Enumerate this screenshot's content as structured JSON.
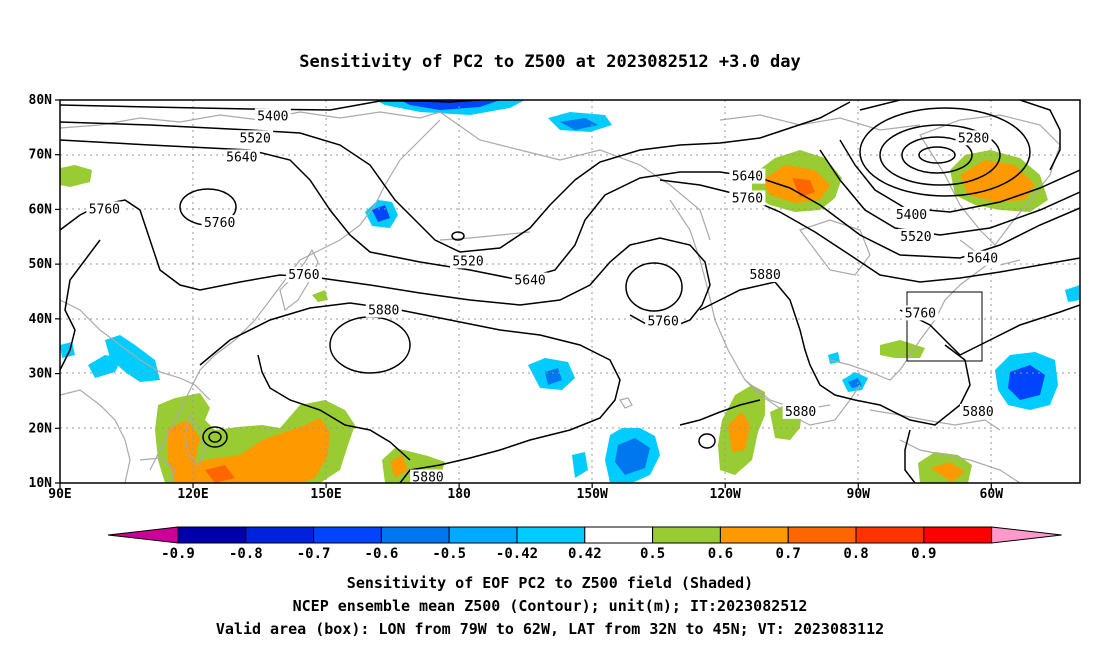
{
  "title": "Sensitivity of PC2 to Z500 at 2023082512 +3.0 day",
  "map": {
    "lon_ticks": [
      "90E",
      "120E",
      "150E",
      "180",
      "150W",
      "120W",
      "90W",
      "60W"
    ],
    "lat_ticks": [
      "80N",
      "70N",
      "60N",
      "50N",
      "40N",
      "30N",
      "20N",
      "10N"
    ],
    "lon_range": [
      90,
      320
    ],
    "lat_range": [
      10,
      80
    ],
    "grid_lines": "dotted",
    "valid_box": {
      "lon_w": -79,
      "lon_e": -62,
      "lat_s": 32,
      "lat_n": 45
    },
    "contour_labels": [
      {
        "text": "5400",
        "lon": 138,
        "lat": 77
      },
      {
        "text": "5520",
        "lon": 134,
        "lat": 73
      },
      {
        "text": "5640",
        "lon": 131,
        "lat": 69.5
      },
      {
        "text": "5760",
        "lon": 100,
        "lat": 60
      },
      {
        "text": "5760",
        "lon": 126,
        "lat": 57.5
      },
      {
        "text": "5520",
        "lon": 182,
        "lat": 50.5
      },
      {
        "text": "5640",
        "lon": 196,
        "lat": 47
      },
      {
        "text": "5760",
        "lon": 145,
        "lat": 48
      },
      {
        "text": "5880",
        "lon": 163,
        "lat": 41.5
      },
      {
        "text": "5760",
        "lon": 226,
        "lat": 39.5
      },
      {
        "text": "5880",
        "lon": 249,
        "lat": 48
      },
      {
        "text": "5640",
        "lon": 245,
        "lat": 66
      },
      {
        "text": "5760",
        "lon": 245,
        "lat": 62
      },
      {
        "text": "5280",
        "lon": 296,
        "lat": 73
      },
      {
        "text": "5400",
        "lon": 282,
        "lat": 59
      },
      {
        "text": "5520",
        "lon": 283,
        "lat": 55
      },
      {
        "text": "5640",
        "lon": 298,
        "lat": 51
      },
      {
        "text": "5760",
        "lon": 284,
        "lat": 41
      },
      {
        "text": "5880",
        "lon": 297,
        "lat": 23
      },
      {
        "text": "5880",
        "lon": 257,
        "lat": 23
      },
      {
        "text": "5880",
        "lon": 173,
        "lat": 11
      }
    ]
  },
  "colorbar": {
    "labels": [
      "-0.9",
      "-0.8",
      "-0.7",
      "-0.6",
      "-0.5",
      "-0.42",
      "0.42",
      "0.5",
      "0.6",
      "0.7",
      "0.8",
      "0.9"
    ],
    "colors": [
      "#cc0099",
      "#0000aa",
      "#0022dd",
      "#0044ff",
      "#0077ee",
      "#00aaff",
      "#00ccff",
      "#ffffff",
      "#99cc33",
      "#ff9900",
      "#ff6600",
      "#ff3300",
      "#ff0000",
      "#ff99cc"
    ]
  },
  "shading_colors": {
    "green": "#99cc33",
    "orange": "#ff9900",
    "dark_orange": "#ff6600",
    "light_blue": "#00ccff",
    "mid_blue": "#0077ee",
    "blue": "#0044ff",
    "dark_blue": "#0000aa"
  },
  "captions": [
    "Sensitivity of EOF PC2 to Z500 field (Shaded)",
    "NCEP ensemble mean Z500 (Contour); unit(m); IT:2023082512",
    "Valid area (box): LON from 79W to 62W, LAT from 32N to 45N; VT: 2023083112"
  ]
}
